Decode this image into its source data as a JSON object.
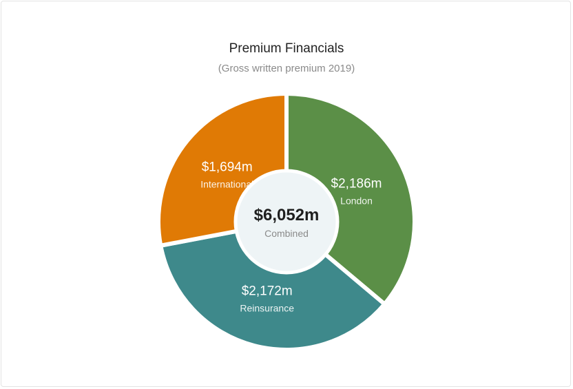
{
  "chart_data": {
    "type": "pie",
    "title": "Premium Financials",
    "subtitle": "(Gross written premium 2019)",
    "center": {
      "value": "$6,052m",
      "label": "Combined"
    },
    "slices": [
      {
        "name": "London",
        "value": 2186,
        "value_label": "$2,186m",
        "color": "#5b8f47"
      },
      {
        "name": "Reinsurance",
        "value": 2172,
        "value_label": "$2,172m",
        "color": "#3e898b"
      },
      {
        "name": "International",
        "value": 1694,
        "value_label": "$1,694m",
        "color": "#e07a05"
      }
    ]
  }
}
